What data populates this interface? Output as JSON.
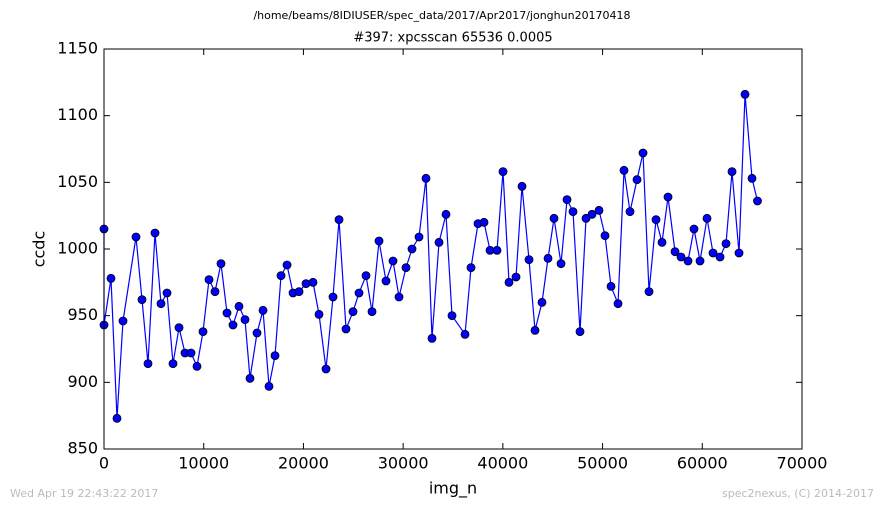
{
  "chart_data": {
    "type": "line",
    "suptitle": "/home/beams/8IDIUSER/spec_data/2017/Apr2017/jonghun20170418",
    "title": "#397: xpcsscan 65536 0.0005",
    "xlabel": "img_n",
    "ylabel": "ccdc",
    "footer_left": "Wed Apr 19 22:43:22 2017",
    "footer_right": "spec2nexus, (C) 2014-2017",
    "xlim": [
      0,
      70000
    ],
    "ylim": [
      850,
      1150
    ],
    "xticks": [
      0,
      10000,
      20000,
      30000,
      40000,
      50000,
      60000,
      70000
    ],
    "yticks": [
      850,
      900,
      950,
      1000,
      1050,
      1100,
      1150
    ],
    "series": [
      {
        "name": "ccdc",
        "color": "#0000ff",
        "x": [
          0,
          0,
          702,
          1304,
          1906,
          3209,
          3811,
          4413,
          5115,
          5717,
          6319,
          6920,
          7522,
          8124,
          8725,
          9327,
          9929,
          10531,
          11132,
          11734,
          12336,
          12937,
          13539,
          14141,
          14642,
          15346,
          15948,
          16549,
          17151,
          17753,
          18355,
          18957,
          19558,
          20260,
          20961,
          21563,
          22265,
          22967,
          23569,
          24271,
          24973,
          25575,
          26277,
          26878,
          27580,
          28282,
          28984,
          29586,
          30288,
          30889,
          31591,
          32293,
          32895,
          33597,
          34299,
          34901,
          36205,
          36806,
          37508,
          38110,
          38712,
          39414,
          40015,
          40617,
          41319,
          41921,
          42623,
          43225,
          43927,
          44529,
          45131,
          45833,
          46434,
          47036,
          47738,
          48340,
          48942,
          49644,
          50245,
          50847,
          51549,
          52151,
          52753,
          53455,
          54056,
          54658,
          55360,
          55962,
          56564,
          57266,
          57867,
          58569,
          59171,
          59773,
          60475,
          61077,
          61779,
          62380,
          62982,
          63684,
          64286,
          64988,
          65536
        ],
        "values": [
          1015,
          943,
          978,
          873,
          946,
          1009,
          962,
          914,
          1012,
          959,
          967,
          914,
          941,
          922,
          922,
          912,
          938,
          977,
          968,
          989,
          952,
          943,
          957,
          947,
          903,
          937,
          954,
          897,
          920,
          980,
          988,
          967,
          968,
          974,
          975,
          951,
          910,
          964,
          1022,
          940,
          953,
          967,
          980,
          953,
          1006,
          976,
          991,
          964,
          986,
          1000,
          1009,
          1053,
          933,
          1005,
          1026,
          950,
          936,
          986,
          1019,
          1020,
          999,
          999,
          1058,
          975,
          979,
          1047,
          992,
          939,
          960,
          993,
          1023,
          989,
          1037,
          1028,
          938,
          1023,
          1026,
          1029,
          1010,
          972,
          959,
          1059,
          1028,
          1052,
          1072,
          968,
          1022,
          1005,
          1039,
          998,
          994,
          991,
          1015,
          991,
          1023,
          997,
          994,
          1004,
          1058,
          997,
          1116,
          1053,
          1036
        ]
      }
    ]
  }
}
